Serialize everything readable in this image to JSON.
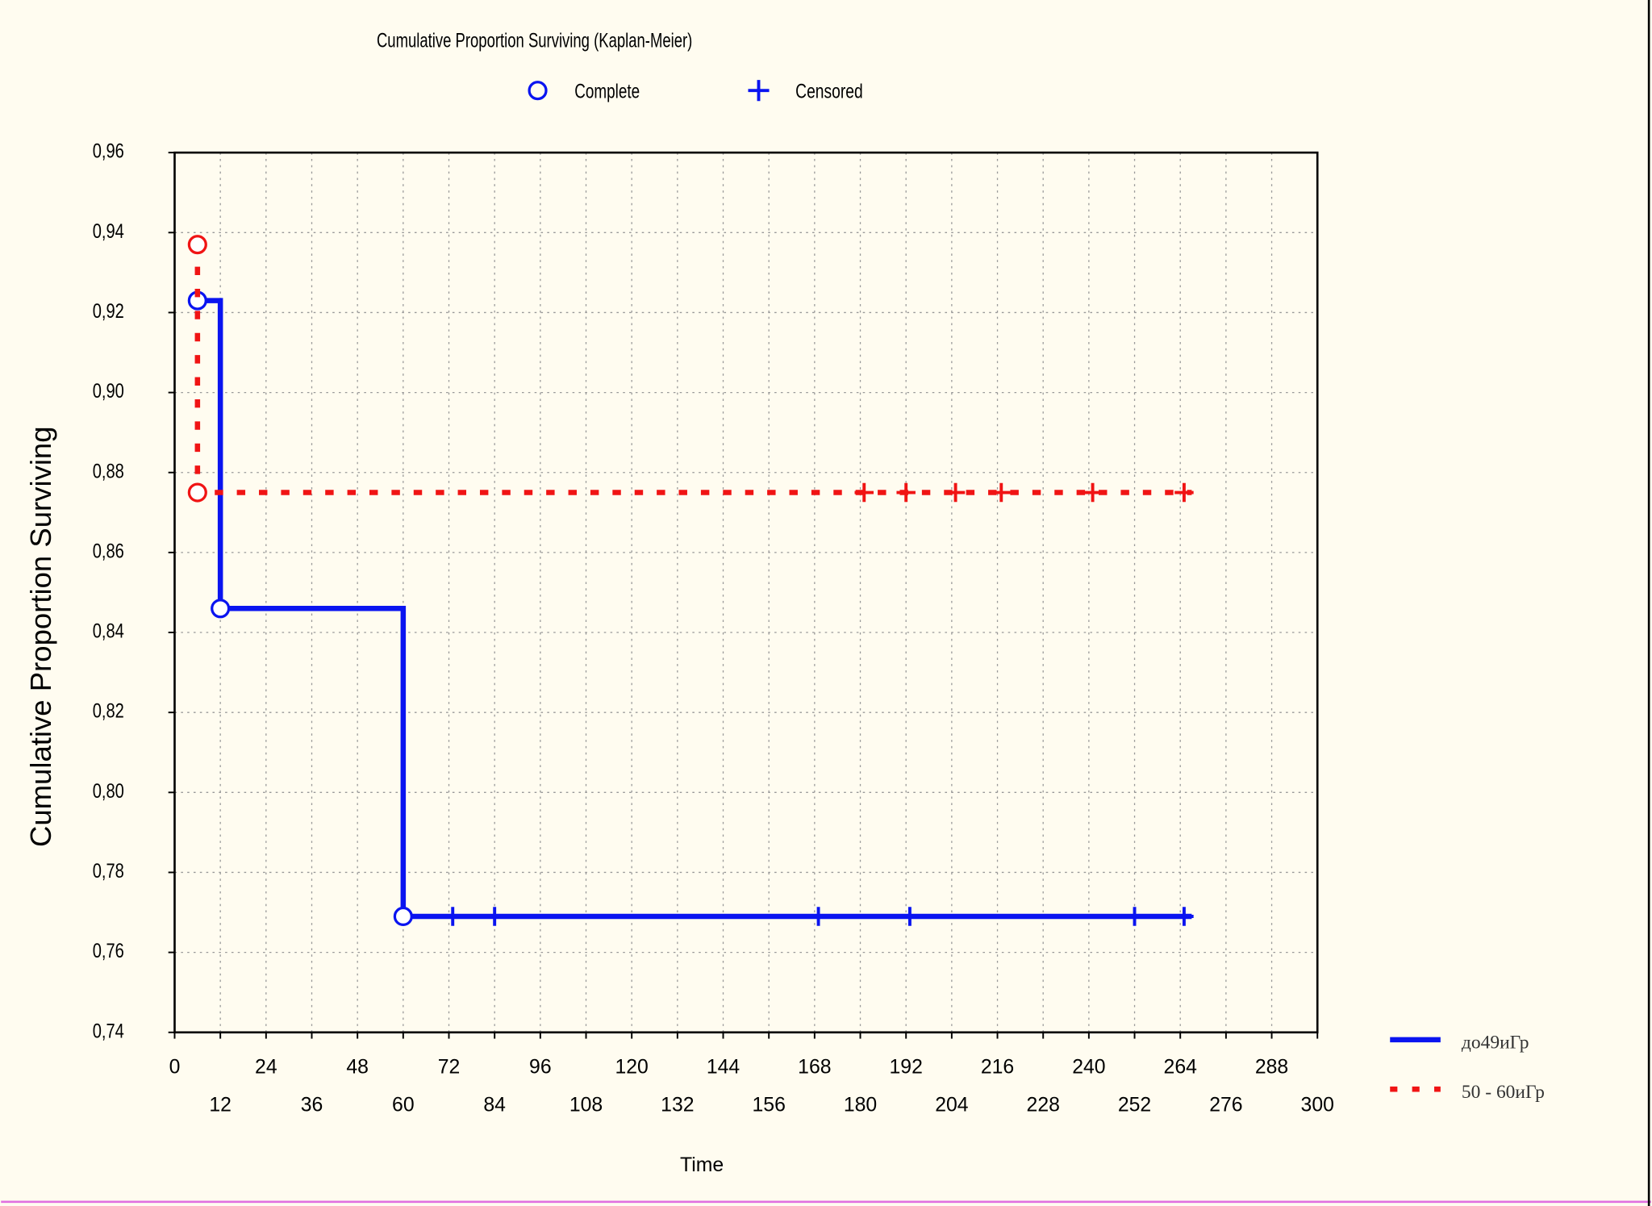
{
  "chart_data": {
    "type": "kaplan-meier",
    "title": "Cumulative Proportion Surviving (Kaplan-Meier)",
    "marker_labels": {
      "complete": "Complete",
      "censored": "Censored"
    },
    "x_label": "Time",
    "y_label": "Cumulative Proportion Surviving",
    "xlim": [
      0,
      300
    ],
    "xticks": [
      0,
      12,
      24,
      36,
      48,
      60,
      72,
      84,
      96,
      108,
      120,
      132,
      144,
      156,
      168,
      180,
      192,
      204,
      216,
      228,
      240,
      252,
      264,
      276,
      288,
      300
    ],
    "ylim": [
      0.74,
      0.96
    ],
    "yticks": [
      {
        "value": 0.74,
        "label": "0,74"
      },
      {
        "value": 0.76,
        "label": "0,76"
      },
      {
        "value": 0.78,
        "label": "0,78"
      },
      {
        "value": 0.8,
        "label": "0,80"
      },
      {
        "value": 0.82,
        "label": "0,82"
      },
      {
        "value": 0.84,
        "label": "0,84"
      },
      {
        "value": 0.86,
        "label": "0,86"
      },
      {
        "value": 0.88,
        "label": "0,88"
      },
      {
        "value": 0.9,
        "label": "0,90"
      },
      {
        "value": 0.92,
        "label": "0,92"
      },
      {
        "value": 0.94,
        "label": "0,94"
      },
      {
        "value": 0.96,
        "label": "0,96"
      }
    ],
    "grid": true,
    "series": [
      {
        "name": "до49иГр",
        "color": "#0a14f0",
        "dashed": false,
        "x": [
          6,
          12,
          12,
          60,
          60,
          267
        ],
        "values": [
          0.923,
          0.923,
          0.846,
          0.846,
          0.769,
          0.769
        ],
        "complete_x": [
          6,
          12,
          60
        ],
        "complete_values": [
          0.923,
          0.846,
          0.769
        ],
        "censored_x": [
          73,
          84,
          169,
          193,
          252,
          265
        ],
        "censored_values": [
          0.769,
          0.769,
          0.769,
          0.769,
          0.769,
          0.769
        ]
      },
      {
        "name": "50 - 60иГр",
        "color": "#f01414",
        "dashed": true,
        "x": [
          6,
          6,
          267
        ],
        "values": [
          0.937,
          0.875,
          0.875
        ],
        "complete_x": [
          6,
          6
        ],
        "complete_values": [
          0.937,
          0.875
        ],
        "censored_x": [
          181,
          192,
          205,
          217,
          241,
          265
        ],
        "censored_values": [
          0.875,
          0.875,
          0.875,
          0.875,
          0.875,
          0.875
        ]
      }
    ]
  }
}
